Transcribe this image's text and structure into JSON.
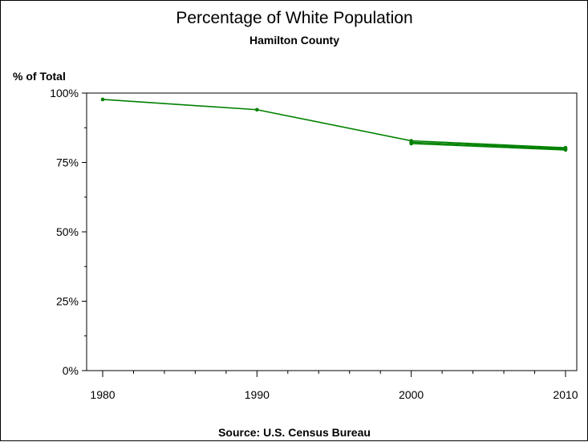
{
  "chart_data": {
    "type": "line",
    "title": "Percentage of White Population",
    "subtitle": "Hamilton County",
    "ylabel": "% of Total",
    "xlabel": "",
    "footnote": "Source: U.S. Census Bureau",
    "x_ticks": [
      "1980",
      "1990",
      "2000",
      "2010"
    ],
    "y_ticks": [
      "0%",
      "25%",
      "50%",
      "75%",
      "100%"
    ],
    "xlim": [
      1980,
      2010
    ],
    "ylim": [
      0,
      100
    ],
    "grid": false,
    "series": [
      {
        "x": [
          1980,
          1990,
          2000,
          2010
        ],
        "y": [
          97.7,
          94.0,
          82.8,
          80.3
        ]
      },
      {
        "x": [
          2000,
          2010
        ],
        "y": [
          81.8,
          79.5
        ]
      },
      {
        "x": [
          2000,
          2010
        ],
        "y": [
          82.3,
          79.9
        ]
      }
    ],
    "colors": {
      "line": "#008000",
      "axis": "#000000"
    }
  }
}
